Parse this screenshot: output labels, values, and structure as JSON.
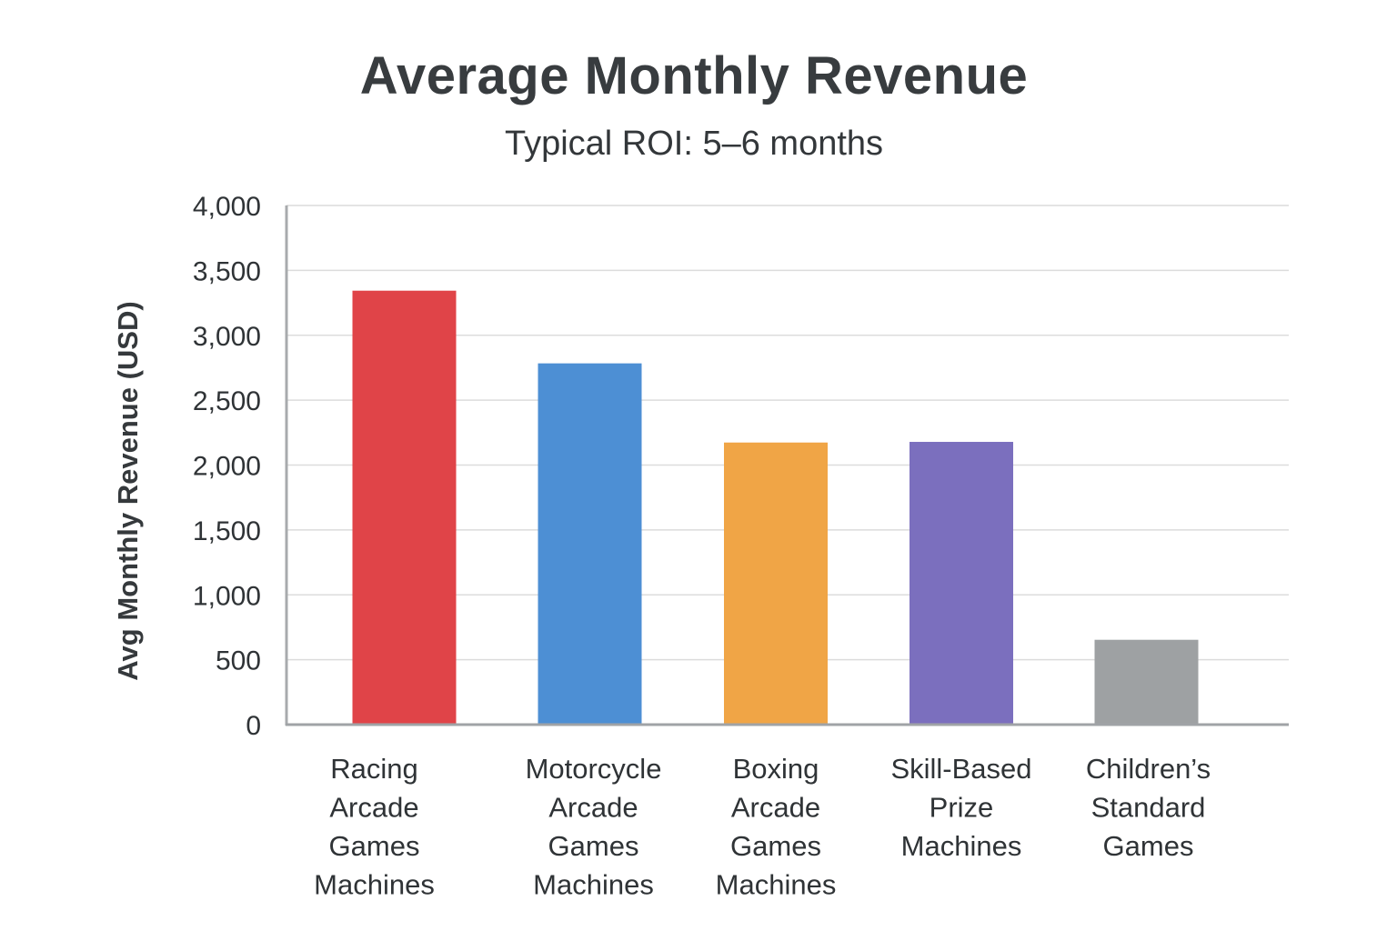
{
  "chart_data": {
    "type": "bar",
    "title": "Average Monthly Revenue",
    "subtitle": "Typical ROI: 5–6 months",
    "xlabel": "",
    "ylabel": "Avg Monthly Revenue (USD)",
    "ylim": [
      0,
      4000
    ],
    "yticks": [
      0,
      500,
      1000,
      1500,
      2000,
      2500,
      3000,
      3500,
      4000
    ],
    "ytick_labels": [
      "0",
      "500",
      "1,000",
      "1,500",
      "2,000",
      "2,500",
      "3,000",
      "3,500",
      "4,000"
    ],
    "grid": true,
    "categories": [
      [
        "Racing",
        "Arcade",
        "Games",
        "Machines"
      ],
      [
        "Motorcycle",
        "Arcade",
        "Games",
        "Machines"
      ],
      [
        "Boxing",
        "Arcade",
        "Games",
        "Machines"
      ],
      [
        "Skill-Based",
        "Prize",
        "Machines"
      ],
      [
        "Children’s",
        "Standard",
        "Games"
      ]
    ],
    "values": [
      3340,
      2780,
      2170,
      2175,
      650
    ],
    "colors": [
      "#e04448",
      "#4d8fd4",
      "#f0a546",
      "#7b6fbe",
      "#9ea1a3"
    ]
  }
}
